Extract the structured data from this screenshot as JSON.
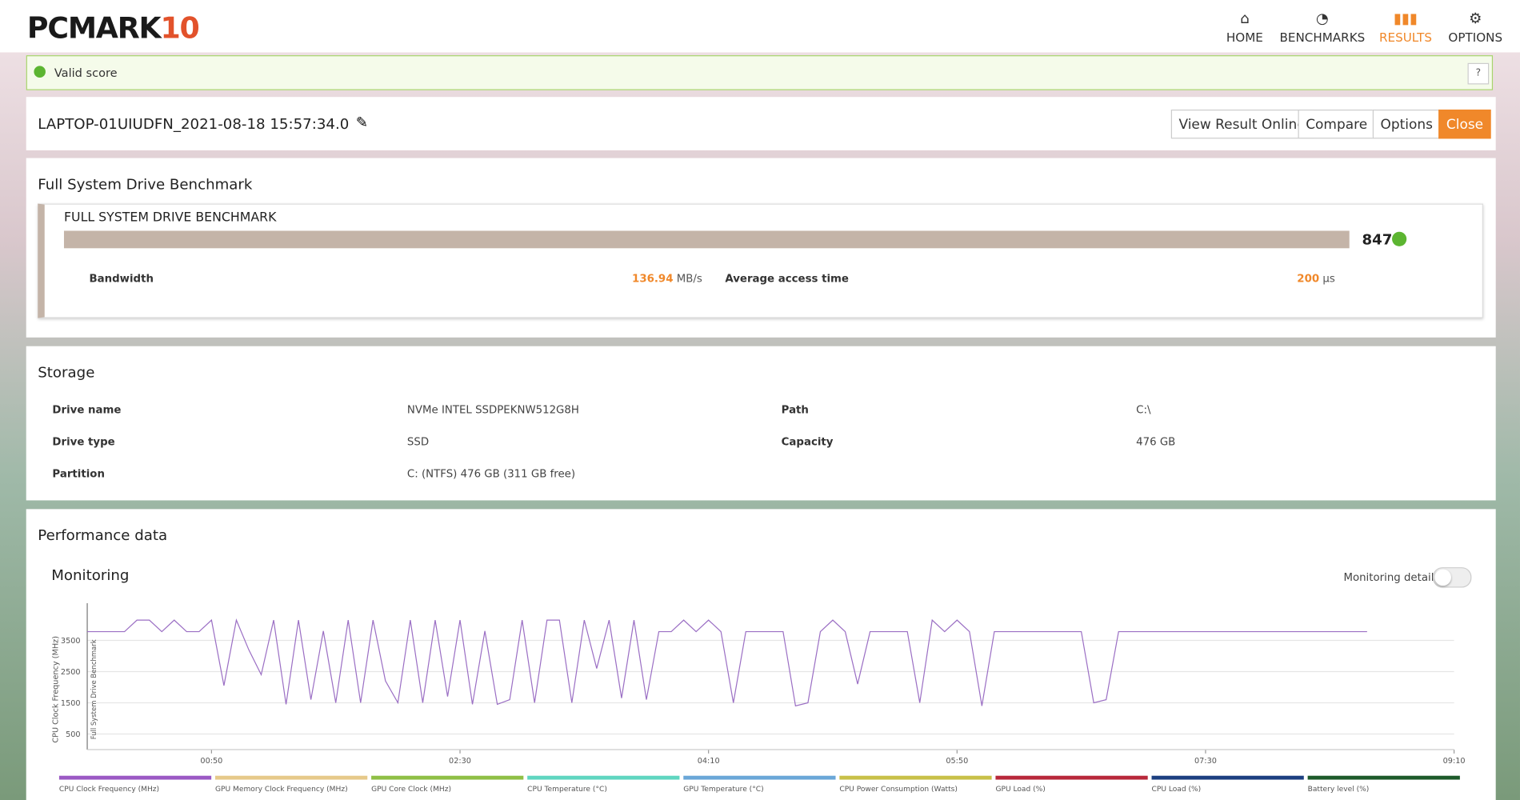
{
  "header": {
    "logo": "PCMARK",
    "logo_num": "10",
    "nav": [
      "HOME",
      "BENCHMARKS",
      "RESULTS",
      "OPTIONS"
    ],
    "active": "RESULTS"
  },
  "status": {
    "text": "Valid score",
    "help": "?"
  },
  "result": {
    "name": "LAPTOP-01UIUDFN_2021-08-18 15:57:34.0",
    "buttons": [
      "View Result Online",
      "Compare",
      "Options",
      "Close"
    ]
  },
  "benchmark": {
    "section": "Full System Drive Benchmark",
    "title": "FULL SYSTEM DRIVE BENCHMARK",
    "score": 847,
    "metrics": [
      {
        "label": "Bandwidth",
        "value": "136.94",
        "unit": "MB/s"
      },
      {
        "label": "Average access time",
        "value": "200",
        "unit": "μs"
      }
    ]
  },
  "storage": {
    "section": "Storage",
    "rows": [
      [
        "Drive name",
        "NVMe INTEL SSDPEKNW512G8H",
        "Path",
        "C:\\"
      ],
      [
        "Drive type",
        "SSD",
        "Capacity",
        "476 GB"
      ],
      [
        "Partition",
        "C: (NTFS) 476 GB (311 GB free)"
      ]
    ]
  },
  "performance": {
    "section": "Performance data",
    "subtitle": "Monitoring",
    "toggle": "Monitoring details"
  },
  "chart_data": {
    "type": "line",
    "ylabel": "CPU Clock Frequency (MHz)",
    "annotation": "Full System Drive Benchmark",
    "xlim": [
      0,
      550
    ],
    "xticks": [
      {
        "value": 50,
        "label": "00:50"
      },
      {
        "value": 150,
        "label": "02:30"
      },
      {
        "value": 250,
        "label": "04:10"
      },
      {
        "value": 350,
        "label": "05:50"
      },
      {
        "value": 450,
        "label": "07:30"
      },
      {
        "value": 550,
        "label": "09:10"
      }
    ],
    "ylim": [
      0,
      4600
    ],
    "yticks": [
      500,
      1500,
      2500,
      3500
    ],
    "grid": true,
    "x": [
      0,
      5,
      10,
      15,
      20,
      25,
      30,
      35,
      40,
      45,
      50,
      55,
      60,
      65,
      70,
      75,
      80,
      85,
      90,
      95,
      100,
      105,
      110,
      115,
      120,
      125,
      130,
      135,
      140,
      145,
      150,
      155,
      160,
      165,
      170,
      175,
      180,
      185,
      190,
      195,
      200,
      205,
      210,
      215,
      220,
      225,
      230,
      235,
      240,
      245,
      250,
      255,
      260,
      265,
      270,
      275,
      280,
      285,
      290,
      295,
      300,
      305,
      310,
      315,
      320,
      325,
      330,
      335,
      340,
      345,
      350,
      355,
      360,
      365,
      370,
      375,
      380,
      385,
      390,
      395,
      400,
      405,
      410,
      415,
      420,
      425,
      430,
      435,
      440,
      445,
      450,
      455,
      460,
      465,
      470,
      475,
      480,
      485,
      490,
      495,
      500,
      505,
      510,
      515
    ],
    "series": [
      {
        "name": "CPU Clock Frequency (MHz)",
        "color": "#9b6fc4",
        "values": [
          3780,
          3780,
          3780,
          3780,
          4150,
          4150,
          3780,
          4150,
          3780,
          3780,
          4150,
          2050,
          4150,
          3200,
          2400,
          4150,
          1450,
          4150,
          1600,
          3800,
          1500,
          4150,
          1500,
          4150,
          2200,
          1500,
          4150,
          1500,
          4150,
          1700,
          4150,
          1450,
          3800,
          1450,
          1600,
          4150,
          1500,
          4150,
          4150,
          1500,
          4150,
          2600,
          4150,
          1650,
          4150,
          1600,
          3780,
          3780,
          4150,
          3780,
          4150,
          3780,
          1500,
          3780,
          3780,
          3780,
          3780,
          1400,
          1500,
          3780,
          4150,
          3780,
          2100,
          3780,
          3780,
          3780,
          3780,
          1500,
          4150,
          3780,
          4150,
          3780,
          1400,
          3780,
          3780,
          3780,
          3780,
          3780,
          3780,
          3780,
          3780,
          1500,
          1600,
          3780,
          3780,
          3780,
          3780,
          3780,
          3780,
          3780,
          3780,
          3780,
          3780,
          3780,
          3780,
          3780,
          3780,
          3780,
          3780,
          3780,
          3780,
          3780,
          3780,
          3780
        ]
      }
    ],
    "legend": [
      {
        "name": "CPU Clock Frequency (MHz)",
        "color": "#9b59c4"
      },
      {
        "name": "GPU Memory Clock Frequency (MHz)",
        "color": "#e6c98a"
      },
      {
        "name": "GPU Core Clock (MHz)",
        "color": "#8fbf45"
      },
      {
        "name": "CPU Temperature (°C)",
        "color": "#5fd6c0"
      },
      {
        "name": "GPU Temperature (°C)",
        "color": "#6aa7d8"
      },
      {
        "name": "CPU Power Consumption (Watts)",
        "color": "#c8c048"
      },
      {
        "name": "GPU Load (%)",
        "color": "#b8283a"
      },
      {
        "name": "CPU Load (%)",
        "color": "#1c3f80"
      },
      {
        "name": "Battery level (%)",
        "color": "#1d5a2a"
      }
    ]
  }
}
